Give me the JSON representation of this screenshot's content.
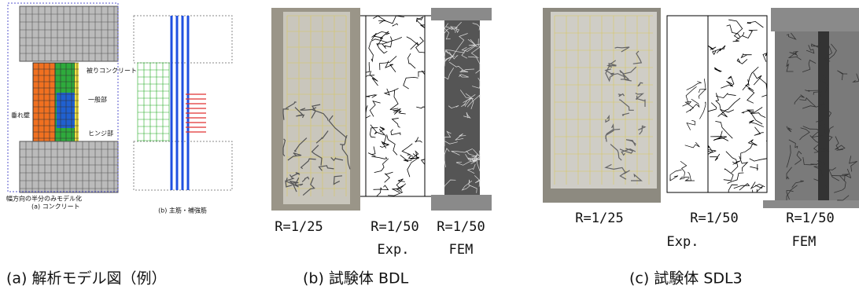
{
  "panels": [
    {
      "caption": "(a) 解析モデル図（例）",
      "labels": {
        "cover": "被りコンクリート",
        "hanging_wall": "垂れ壁",
        "general": "一般部",
        "hinge": "ヒンジ部",
        "note": "幅方向の半分のみモデル化",
        "sub_a": "(a) コンクリート",
        "sub_b": "(b) 主筋・補強筋"
      }
    },
    {
      "caption": "(b) 試験体 BDL",
      "images": [
        {
          "label": "R=1/25"
        },
        {
          "label": "R=1/50",
          "kind": "Exp."
        },
        {
          "label": "R=1/50",
          "kind": "FEM"
        }
      ]
    },
    {
      "caption": "(c) 試験体 SDL3",
      "images": [
        {
          "label": "R=1/25"
        },
        {
          "label": "R=1/50",
          "kind": "Exp."
        },
        {
          "label": "R=1/50",
          "kind": "FEM"
        }
      ]
    }
  ]
}
